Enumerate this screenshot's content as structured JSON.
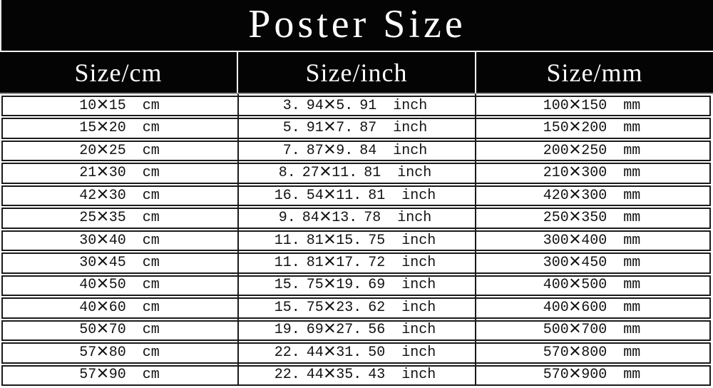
{
  "chart_data": {
    "type": "table",
    "title": "Poster Size",
    "columns": [
      "Size/cm",
      "Size/inch",
      "Size/mm"
    ],
    "rows": [
      [
        "10×15 cm",
        "3.94×5.91 inch",
        "100×150 mm"
      ],
      [
        "15×20 cm",
        "5.91×7.87 inch",
        "150×200 mm"
      ],
      [
        "20×25 cm",
        "7.87×9.84 inch",
        "200×250 mm"
      ],
      [
        "21×30 cm",
        "8.27×11.81 inch",
        "210×300 mm"
      ],
      [
        "42×30 cm",
        "16.54×11.81 inch",
        "420×300 mm"
      ],
      [
        "25×35 cm",
        "9.84×13.78 inch",
        "250×350 mm"
      ],
      [
        "30×40 cm",
        "11.81×15.75 inch",
        "300×400 mm"
      ],
      [
        "30×45 cm",
        "11.81×17.72 inch",
        "300×450 mm"
      ],
      [
        "40×50 cm",
        "15.75×19.69 inch",
        "400×500 mm"
      ],
      [
        "40×60 cm",
        "15.75×23.62 inch",
        "400×600 mm"
      ],
      [
        "50×70 cm",
        "19.69×27.56 inch",
        "500×700 mm"
      ],
      [
        "57×80 cm",
        "22.44×31.50 inch",
        "570×800 mm"
      ],
      [
        "57×90 cm",
        "22.44×35.43 inch",
        "570×900 mm"
      ]
    ],
    "layout": {
      "legend": "none",
      "grid": "double-line row borders, single vertical column rules",
      "header_style": "black background, white text",
      "title_style": "black banner, white serif text"
    }
  },
  "colors": {
    "banner_bg": "#040404",
    "header_bg": "#040404",
    "header_text": "#ffffff",
    "body_bg": "#ffffff",
    "body_text": "#121212",
    "row_border": "#1a1a1a",
    "header_underline": "#8f8f8f"
  }
}
